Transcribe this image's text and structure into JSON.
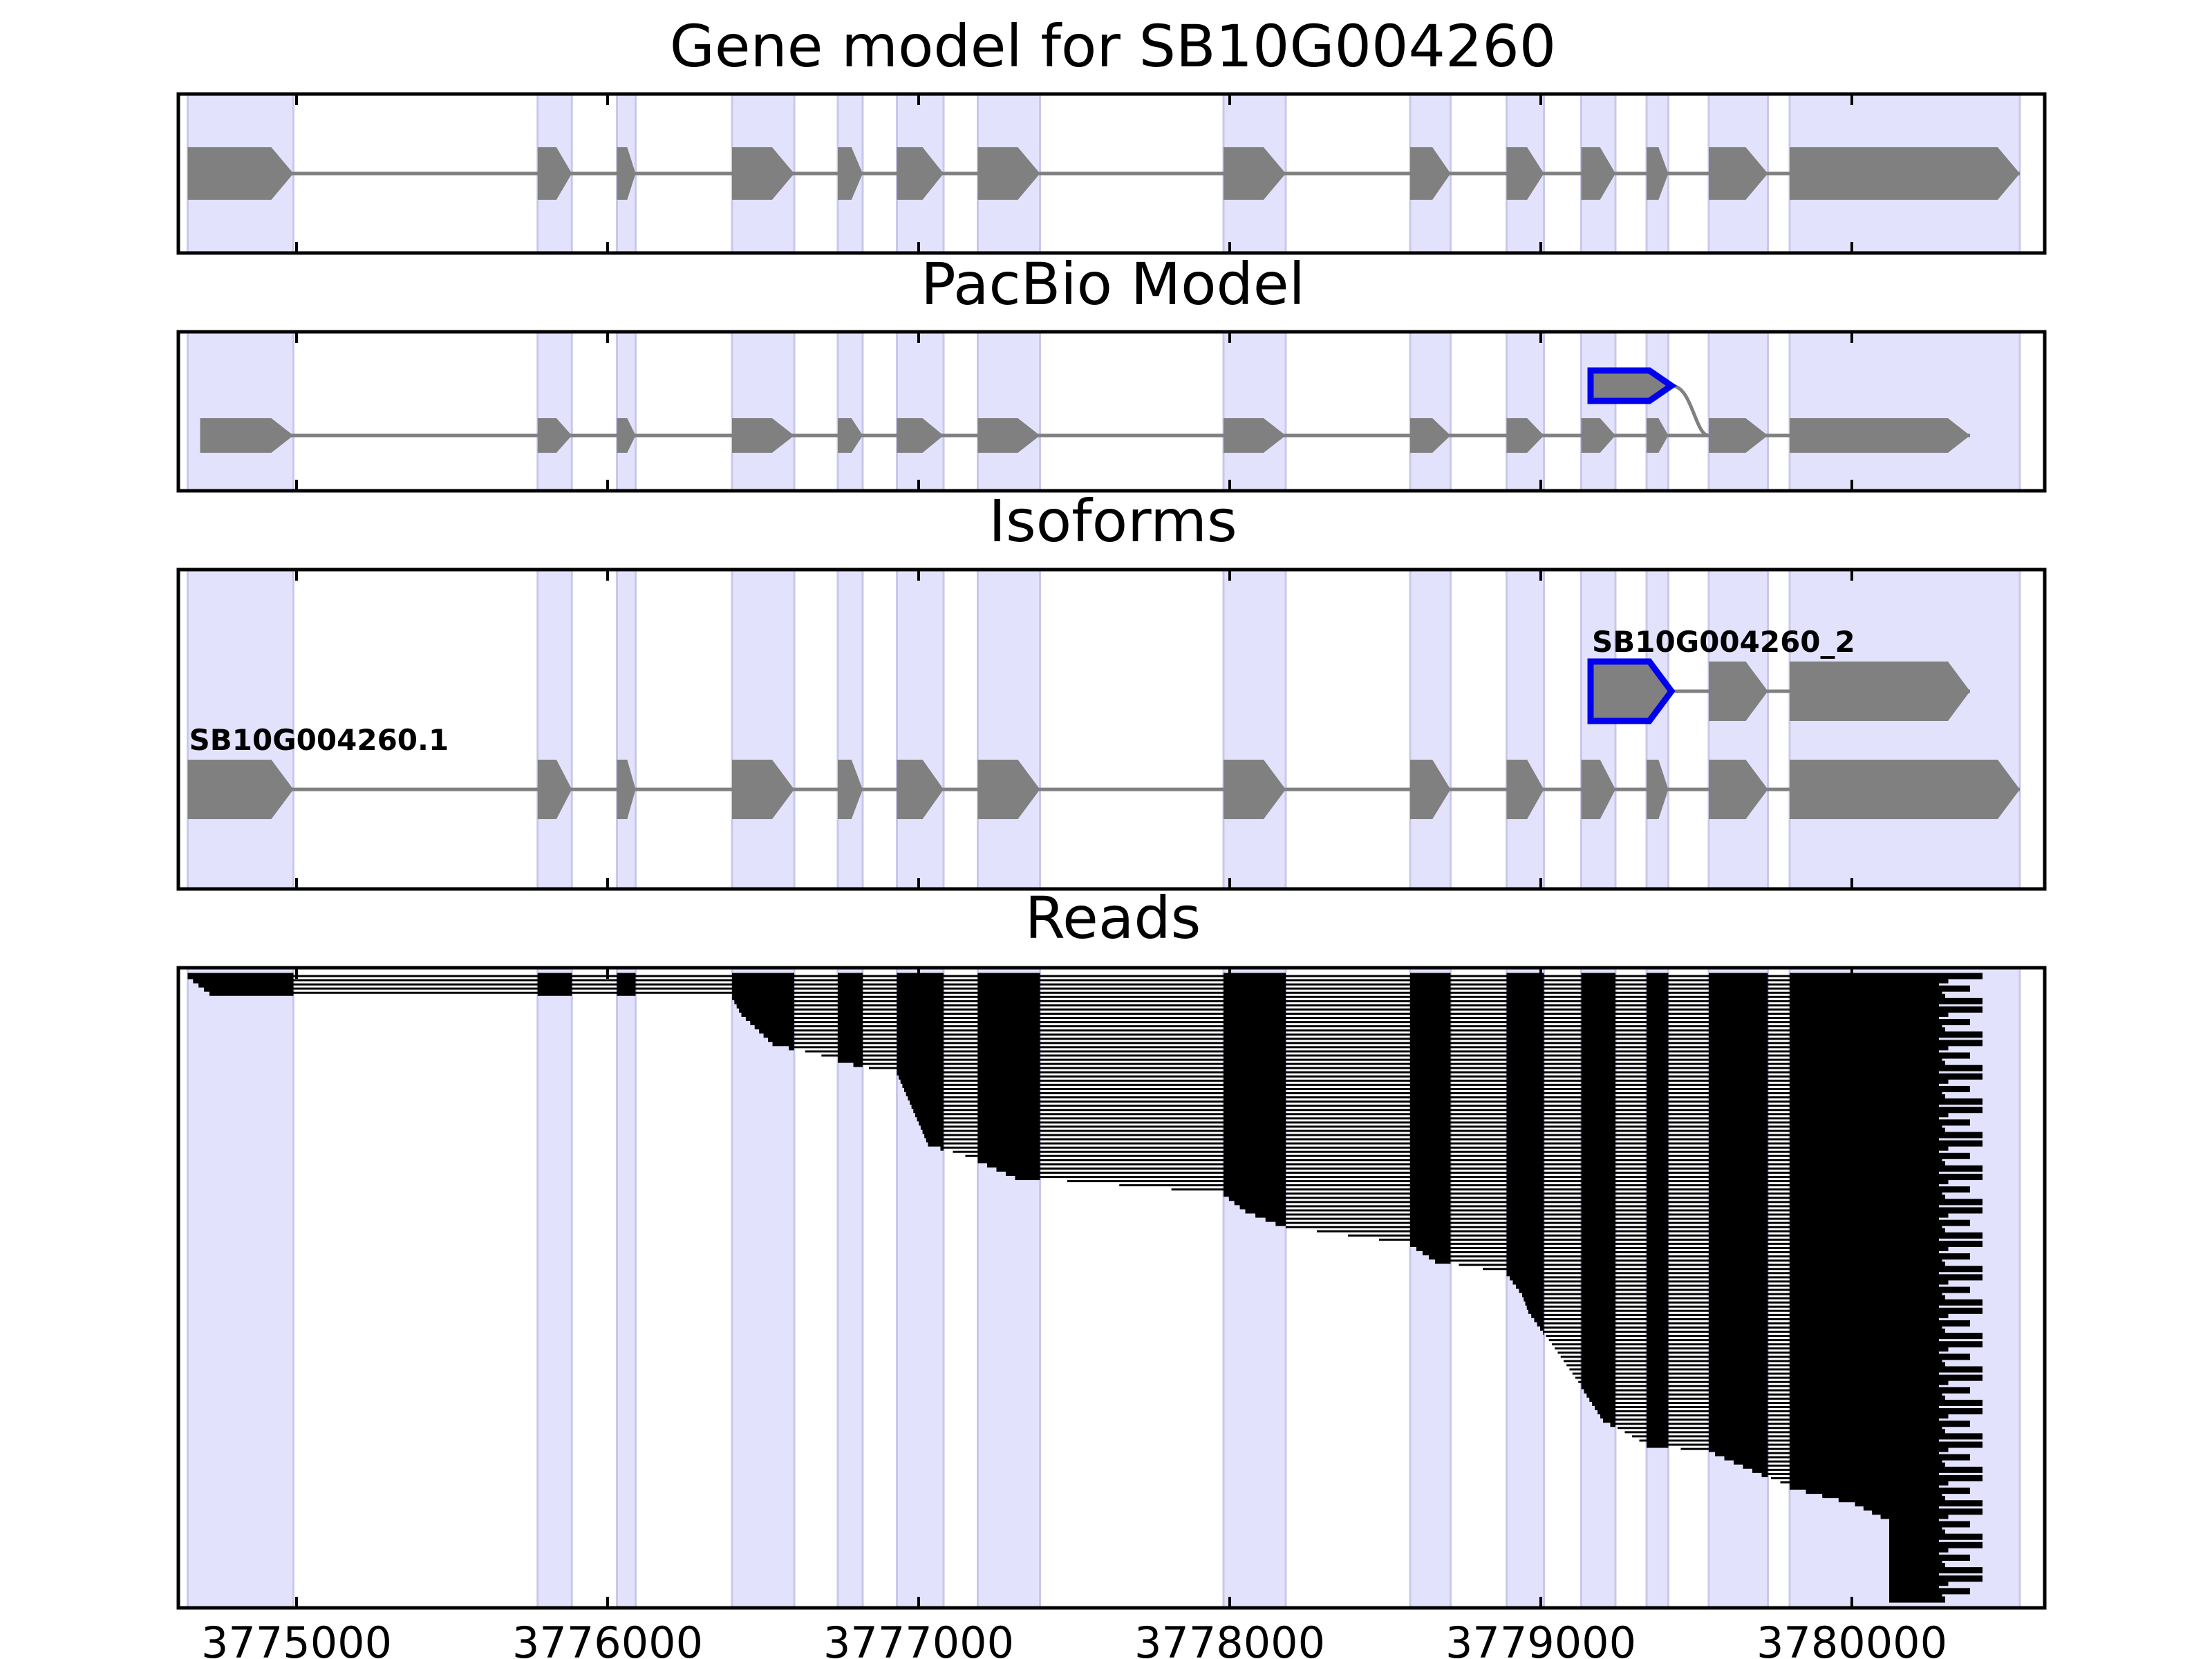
{
  "colors": {
    "exon_band": "#e2e2fc",
    "exon_band_edge": "#c8c8ea",
    "gene_shape": "#808080",
    "intron_line": "#808080",
    "highlight_outline": "#0000ee",
    "read": "#000000",
    "axes": "#000000"
  },
  "chart_data": {
    "type": "gene-track",
    "title": "Gene model for SB10G004260",
    "xlim": [
      3774620,
      3780620
    ],
    "xticks": [
      3775000,
      3776000,
      3777000,
      3778000,
      3779000,
      3780000
    ],
    "tick_labels": [
      "3775000",
      "3776000",
      "3777000",
      "3778000",
      "3779000",
      "3780000"
    ],
    "exon_bands": [
      [
        3774650,
        3774990
      ],
      [
        3775775,
        3775885
      ],
      [
        3776030,
        3776090
      ],
      [
        3776400,
        3776600
      ],
      [
        3776740,
        3776820
      ],
      [
        3776930,
        3777080
      ],
      [
        3777190,
        3777390
      ],
      [
        3777980,
        3778180
      ],
      [
        3778580,
        3778710
      ],
      [
        3778890,
        3779010
      ],
      [
        3779130,
        3779240
      ],
      [
        3779340,
        3779410
      ],
      [
        3779540,
        3779730
      ],
      [
        3779800,
        3780540
      ]
    ],
    "panels": [
      {
        "title": "Gene model for SB10G004260",
        "tracks": [
          {
            "label": "",
            "exons": [
              [
                3774650,
                3774990
              ],
              [
                3775775,
                3775885
              ],
              [
                3776030,
                3776090
              ],
              [
                3776400,
                3776600
              ],
              [
                3776740,
                3776820
              ],
              [
                3776930,
                3777080
              ],
              [
                3777190,
                3777390
              ],
              [
                3777980,
                3778180
              ],
              [
                3778580,
                3778710
              ],
              [
                3778890,
                3779010
              ],
              [
                3779130,
                3779240
              ],
              [
                3779340,
                3779410
              ],
              [
                3779540,
                3779730
              ],
              [
                3779800,
                3780540
              ]
            ]
          }
        ]
      },
      {
        "title": "PacBio Model",
        "tracks": [
          {
            "label": "",
            "exons": [
              [
                3774690,
                3774990
              ],
              [
                3775775,
                3775885
              ],
              [
                3776030,
                3776090
              ],
              [
                3776400,
                3776600
              ],
              [
                3776740,
                3776820
              ],
              [
                3776930,
                3777080
              ],
              [
                3777190,
                3777390
              ],
              [
                3777980,
                3778180
              ],
              [
                3778580,
                3778710
              ],
              [
                3778890,
                3779010
              ],
              [
                3779130,
                3779240
              ],
              [
                3779340,
                3779410
              ],
              [
                3779540,
                3779730
              ],
              [
                3779800,
                3780380
              ]
            ]
          }
        ],
        "alt_exon": {
          "start": 3779160,
          "end": 3779420,
          "rejoin": 3779540
        }
      },
      {
        "title": "Isoforms",
        "tracks": [
          {
            "label": "SB10G004260_2",
            "highlight_first": true,
            "exons": [
              [
                3779160,
                3779420
              ],
              [
                3779540,
                3779730
              ],
              [
                3779800,
                3780380
              ]
            ]
          },
          {
            "label": "SB10G004260.1",
            "exons": [
              [
                3774650,
                3774990
              ],
              [
                3775775,
                3775885
              ],
              [
                3776030,
                3776090
              ],
              [
                3776400,
                3776600
              ],
              [
                3776740,
                3776820
              ],
              [
                3776930,
                3777080
              ],
              [
                3777190,
                3777390
              ],
              [
                3777980,
                3778180
              ],
              [
                3778580,
                3778710
              ],
              [
                3778890,
                3779010
              ],
              [
                3779130,
                3779240
              ],
              [
                3779340,
                3779410
              ],
              [
                3779540,
                3779730
              ],
              [
                3779800,
                3780540
              ]
            ]
          }
        ]
      },
      {
        "title": "Reads",
        "read_count": 150,
        "read_start_points": [
          [
            0,
            3774650
          ],
          [
            4,
            3774720
          ],
          [
            5,
            3776400
          ],
          [
            9,
            3776430
          ],
          [
            16,
            3776530
          ],
          [
            20,
            3776740
          ],
          [
            22,
            3776840
          ],
          [
            23,
            3776930
          ],
          [
            40,
            3777030
          ],
          [
            44,
            3777190
          ],
          [
            48,
            3777310
          ],
          [
            52,
            3777980
          ],
          [
            56,
            3778050
          ],
          [
            60,
            3778180
          ],
          [
            64,
            3778580
          ],
          [
            68,
            3778660
          ],
          [
            71,
            3778890
          ],
          [
            76,
            3778940
          ],
          [
            80,
            3778960
          ],
          [
            98,
            3779130
          ],
          [
            106,
            3779200
          ],
          [
            112,
            3779340
          ],
          [
            114,
            3779560
          ],
          [
            122,
            3779800
          ],
          [
            126,
            3780010
          ],
          [
            130,
            3780120
          ],
          [
            140,
            3780120
          ]
        ],
        "read_end_cycle": [
          3780420,
          3780310,
          3780280,
          3780380,
          3780290,
          3780300,
          3780420,
          3780280
        ]
      }
    ]
  }
}
